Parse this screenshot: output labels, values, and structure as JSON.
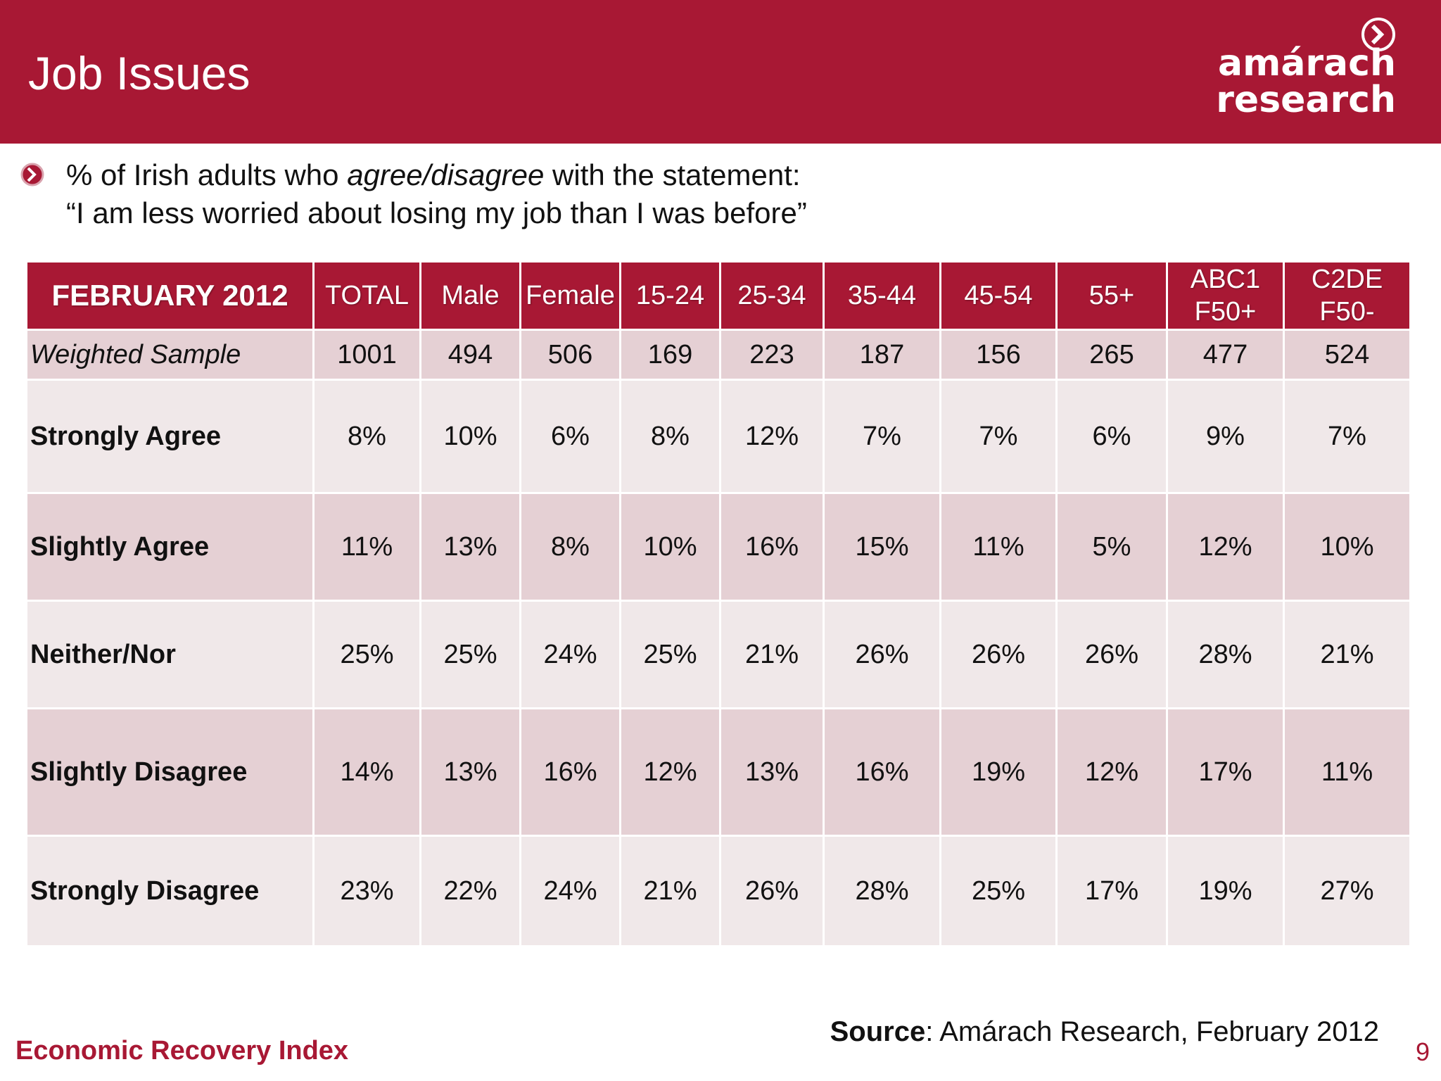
{
  "header": {
    "title": "Job Issues",
    "logo_line1": "amárach",
    "logo_line2": "research"
  },
  "subtitle": {
    "line1_pre": "% of Irish adults who ",
    "line1_em": "agree/disagree",
    "line1_post": " with the statement:",
    "line2": "“I am less worried about losing my job than I was before”"
  },
  "table": {
    "corner": "FEBRUARY 2012",
    "columns": [
      {
        "line1": "TOTAL",
        "line2": ""
      },
      {
        "line1": "Male",
        "line2": ""
      },
      {
        "line1": "Female",
        "line2": ""
      },
      {
        "line1": "15-24",
        "line2": ""
      },
      {
        "line1": "25-34",
        "line2": ""
      },
      {
        "line1": "35-44",
        "line2": ""
      },
      {
        "line1": "45-54",
        "line2": ""
      },
      {
        "line1": "55+",
        "line2": ""
      },
      {
        "line1": "ABC1",
        "line2": "F50+"
      },
      {
        "line1": "C2DE",
        "line2": "F50-"
      }
    ],
    "rows": [
      {
        "label": "Weighted Sample",
        "values": [
          "1001",
          "494",
          "506",
          "169",
          "223",
          "187",
          "156",
          "265",
          "477",
          "524"
        ]
      },
      {
        "label": "Strongly Agree",
        "values": [
          "8%",
          "10%",
          "6%",
          "8%",
          "12%",
          "7%",
          "7%",
          "6%",
          "9%",
          "7%"
        ]
      },
      {
        "label": "Slightly Agree",
        "values": [
          "11%",
          "13%",
          "8%",
          "10%",
          "16%",
          "15%",
          "11%",
          "5%",
          "12%",
          "10%"
        ]
      },
      {
        "label": "Neither/Nor",
        "values": [
          "25%",
          "25%",
          "24%",
          "25%",
          "21%",
          "26%",
          "26%",
          "26%",
          "28%",
          "21%"
        ]
      },
      {
        "label": "Slightly Disagree",
        "values": [
          "14%",
          "13%",
          "16%",
          "12%",
          "13%",
          "16%",
          "19%",
          "12%",
          "17%",
          "11%"
        ]
      },
      {
        "label": "Strongly Disagree",
        "values": [
          "23%",
          "22%",
          "24%",
          "21%",
          "26%",
          "28%",
          "25%",
          "17%",
          "19%",
          "27%"
        ]
      }
    ]
  },
  "source": {
    "bold": "Source",
    "rest": ": Amárach Research, February 2012"
  },
  "footer": {
    "left": "Economic Recovery Index",
    "page": "9"
  },
  "colors": {
    "brand": "#a81834",
    "row_dark": "#e5d0d4",
    "row_light": "#f0e8e9"
  }
}
